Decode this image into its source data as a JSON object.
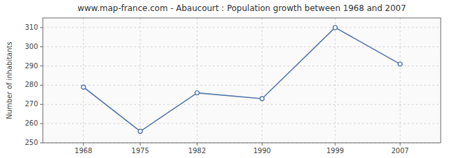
{
  "chart_data": {
    "type": "line",
    "title": "www.map-france.com - Abaucourt : Population growth between 1968 and 2007",
    "ylabel": "Number of inhabitants",
    "x": [
      1968,
      1975,
      1982,
      1990,
      1999,
      2007
    ],
    "values": [
      279,
      256,
      276,
      273,
      310,
      291
    ],
    "xlim": [
      1963,
      2012
    ],
    "xticks": [
      1968,
      1975,
      1982,
      1990,
      1999,
      2007
    ],
    "ylim": [
      250,
      315
    ],
    "yticks": [
      250,
      260,
      270,
      280,
      290,
      300,
      310
    ],
    "color": "#5577aa",
    "marker": "circle",
    "grid": true
  }
}
